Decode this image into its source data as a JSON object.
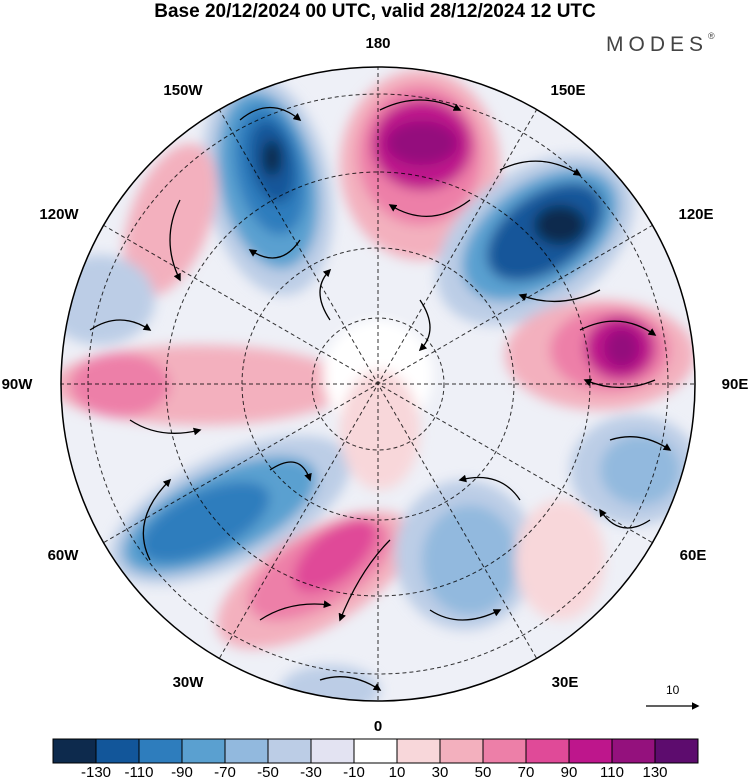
{
  "title": "Base 20/12/2024 00 UTC, valid 28/12/2024 12 UTC",
  "brand": {
    "name": "MODES",
    "mark": "®"
  },
  "map": {
    "projection": "north-polar-stereographic",
    "meridian_labels": [
      {
        "id": "lon-180",
        "text": "180"
      },
      {
        "id": "lon-150e",
        "text": "150E"
      },
      {
        "id": "lon-120e",
        "text": "120E"
      },
      {
        "id": "lon-90e",
        "text": "90E"
      },
      {
        "id": "lon-60e",
        "text": "60E"
      },
      {
        "id": "lon-30e",
        "text": "30E"
      },
      {
        "id": "lon-0",
        "text": "0"
      },
      {
        "id": "lon-30w",
        "text": "30W"
      },
      {
        "id": "lon-60w",
        "text": "60W"
      },
      {
        "id": "lon-90w",
        "text": "90W"
      },
      {
        "id": "lon-120w",
        "text": "120W"
      },
      {
        "id": "lon-150w",
        "text": "150W"
      }
    ],
    "anomaly_centers": [
      {
        "name": "negative-150W",
        "sign": "negative",
        "value": -130
      },
      {
        "name": "positive-170E",
        "sign": "positive",
        "value": 130
      },
      {
        "name": "negative-130E",
        "sign": "negative",
        "value": -130
      },
      {
        "name": "positive-100E",
        "sign": "positive",
        "value": 130
      },
      {
        "name": "negative-60W",
        "sign": "negative",
        "value": -110
      },
      {
        "name": "positive-20W",
        "sign": "positive",
        "value": 90
      },
      {
        "name": "negative-20E",
        "sign": "negative",
        "value": -70
      },
      {
        "name": "negative-70E",
        "sign": "negative",
        "value": -50
      }
    ]
  },
  "vector_scale": {
    "text": "10"
  },
  "colorbar": {
    "colors": [
      "#0d2a4d",
      "#12569a",
      "#2e7dbd",
      "#5aa0d0",
      "#92b9de",
      "#bccde6",
      "#e3e3f2",
      "#ffffff",
      "#f8d7da",
      "#f3b0be",
      "#ed7fa8",
      "#e04a98",
      "#be168c",
      "#94117d",
      "#5d0c6e"
    ],
    "labels": [
      "-130",
      "-110",
      "-90",
      "-70",
      "-50",
      "-30",
      "-10",
      "10",
      "30",
      "50",
      "70",
      "90",
      "110",
      "130"
    ]
  }
}
